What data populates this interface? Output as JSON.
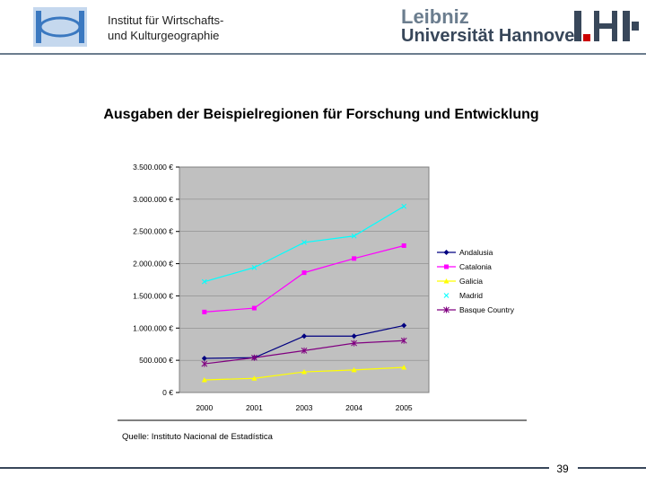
{
  "header": {
    "institute": "Institut für Wirtschafts- und Kulturgeographie",
    "university_line1": "Leibniz",
    "university_line2": "Universität Hannover"
  },
  "chart_data": {
    "type": "line",
    "title": "Ausgaben der Beispielregionen für Forschung und Entwicklung",
    "categories": [
      "2000",
      "2001",
      "2003",
      "2004",
      "2005"
    ],
    "series": [
      {
        "name": "Andalusia",
        "color": "#000080",
        "marker": "diamond",
        "values": [
          530000,
          540000,
          875000,
          875000,
          1040000
        ]
      },
      {
        "name": "Catalonia",
        "color": "#ff00ff",
        "marker": "square",
        "values": [
          1250000,
          1310000,
          1860000,
          2080000,
          2280000
        ]
      },
      {
        "name": "Galicia",
        "color": "#ffff00",
        "marker": "triangle",
        "values": [
          195000,
          220000,
          320000,
          350000,
          390000
        ]
      },
      {
        "name": "Madrid",
        "color": "#00ffff",
        "marker": "x",
        "values": [
          1720000,
          1940000,
          2330000,
          2430000,
          2890000
        ]
      },
      {
        "name": "Basque Country",
        "color": "#800080",
        "marker": "star",
        "values": [
          445000,
          540000,
          650000,
          765000,
          805000
        ]
      }
    ],
    "ylim": [
      0,
      3500000
    ],
    "yticks": [
      {
        "value": 0,
        "label": "0 €"
      },
      {
        "value": 500000,
        "label": "500.000 €"
      },
      {
        "value": 1000000,
        "label": "1.000.000 €"
      },
      {
        "value": 1500000,
        "label": "1.500.000 €"
      },
      {
        "value": 2000000,
        "label": "2.000.000 €"
      },
      {
        "value": 2500000,
        "label": "2.500.000 €"
      },
      {
        "value": 3000000,
        "label": "3.000.000 €"
      },
      {
        "value": 3500000,
        "label": "3.500.000 €"
      }
    ],
    "grid": true,
    "legend": "right"
  },
  "source": "Quelle: Instituto Nacional de Estadística",
  "page_number": "39"
}
